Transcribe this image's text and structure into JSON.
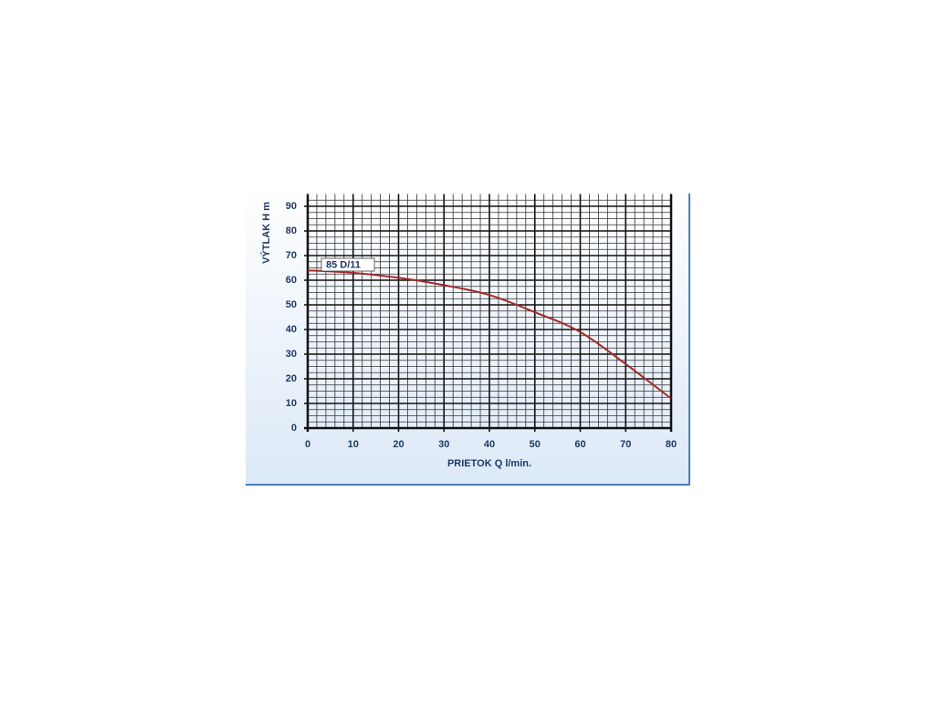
{
  "chart_data": {
    "type": "line",
    "series_label": "85 D/11",
    "x_label": "PRIETOK  Q  l/min.",
    "y_label": "VÝTLAK  H  m",
    "x": [
      0,
      10,
      20,
      30,
      40,
      50,
      60,
      70,
      80
    ],
    "series": [
      {
        "name": "85 D/11",
        "color": "#a52a2a",
        "values": [
          64,
          63,
          61,
          58,
          54,
          47,
          39,
          26,
          12
        ]
      }
    ],
    "xlim": [
      0,
      80
    ],
    "xticks": [
      0,
      10,
      20,
      30,
      40,
      50,
      60,
      70,
      80
    ],
    "ylim": [
      0,
      95
    ],
    "yticks": [
      0,
      10,
      20,
      30,
      40,
      50,
      60,
      70,
      80,
      90
    ],
    "grid": true
  }
}
